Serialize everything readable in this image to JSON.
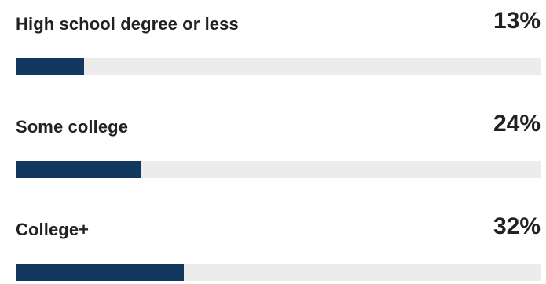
{
  "colors": {
    "bar": "#12385f",
    "track": "#ececec",
    "text": "#222222"
  },
  "chart_data": {
    "type": "bar",
    "orientation": "horizontal",
    "categories": [
      "High school degree or less",
      "Some college",
      "College+"
    ],
    "values": [
      13,
      24,
      32
    ],
    "value_labels": [
      "13%",
      "24%",
      "32%"
    ],
    "xlim": [
      0,
      100
    ],
    "grid": false
  }
}
